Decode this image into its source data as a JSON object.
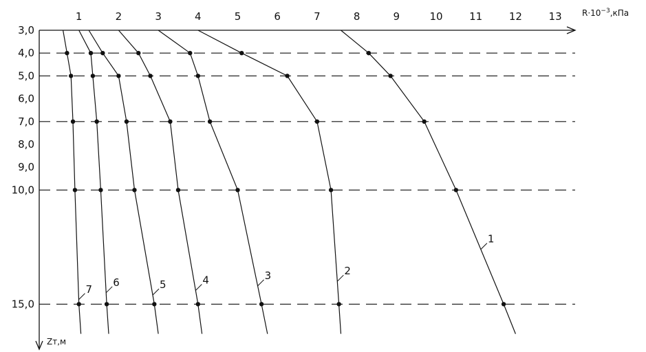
{
  "chart_data": {
    "type": "line",
    "x_axis": {
      "label": "R·10",
      "label_exponent": "−3",
      "label_unit": ",кПа",
      "range": [
        0,
        13
      ],
      "tick_values": [
        1,
        2,
        3,
        4,
        5,
        6,
        7,
        8,
        9,
        10,
        11,
        12,
        13
      ],
      "tick_labels": [
        "1",
        "2",
        "3",
        "4",
        "5",
        "6",
        "7",
        "8",
        "9",
        "10",
        "11",
        "12",
        "13"
      ],
      "position": "top"
    },
    "y_axis": {
      "label": "Zт,м",
      "range": [
        3,
        16.2
      ],
      "inverted": true,
      "tick_values": [
        3,
        4,
        5,
        6,
        7,
        8,
        9,
        10,
        15
      ],
      "tick_labels": [
        "3,0",
        "4,0",
        "5,0",
        "6,0",
        "7,0",
        "8,0",
        "9,0",
        "10,0",
        "15,0"
      ]
    },
    "marker_depths": [
      4,
      5,
      7,
      10,
      15
    ],
    "grid": "dashed horizontal lines at marker depths",
    "series": [
      {
        "name": "1",
        "points": [
          [
            7.6,
            3
          ],
          [
            8.3,
            4
          ],
          [
            8.85,
            5
          ],
          [
            9.7,
            7
          ],
          [
            10.5,
            10
          ],
          [
            11.7,
            15
          ],
          [
            12.0,
            16.3
          ]
        ]
      },
      {
        "name": "2",
        "points": [
          [
            4.0,
            3
          ],
          [
            5.1,
            4
          ],
          [
            6.25,
            5
          ],
          [
            7.0,
            7
          ],
          [
            7.35,
            10
          ],
          [
            7.55,
            15
          ],
          [
            7.6,
            16.3
          ]
        ]
      },
      {
        "name": "3",
        "points": [
          [
            3.0,
            3
          ],
          [
            3.8,
            4
          ],
          [
            4.0,
            5
          ],
          [
            4.3,
            7
          ],
          [
            5.0,
            10
          ],
          [
            5.6,
            15
          ],
          [
            5.75,
            16.3
          ]
        ]
      },
      {
        "name": "4",
        "points": [
          [
            2.0,
            3
          ],
          [
            2.5,
            4
          ],
          [
            2.8,
            5
          ],
          [
            3.3,
            7
          ],
          [
            3.5,
            10
          ],
          [
            4.0,
            15
          ],
          [
            4.1,
            16.3
          ]
        ]
      },
      {
        "name": "5",
        "points": [
          [
            1.25,
            3
          ],
          [
            1.6,
            4
          ],
          [
            2.0,
            5
          ],
          [
            2.2,
            7
          ],
          [
            2.4,
            10
          ],
          [
            2.9,
            15
          ],
          [
            3.0,
            16.3
          ]
        ]
      },
      {
        "name": "6",
        "points": [
          [
            1.0,
            3
          ],
          [
            1.3,
            4
          ],
          [
            1.35,
            5
          ],
          [
            1.45,
            7
          ],
          [
            1.55,
            10
          ],
          [
            1.7,
            15
          ],
          [
            1.75,
            16.3
          ]
        ]
      },
      {
        "name": "7",
        "points": [
          [
            0.6,
            3
          ],
          [
            0.7,
            4
          ],
          [
            0.8,
            5
          ],
          [
            0.85,
            7
          ],
          [
            0.9,
            10
          ],
          [
            1.0,
            15
          ],
          [
            1.05,
            16.3
          ]
        ]
      }
    ]
  }
}
